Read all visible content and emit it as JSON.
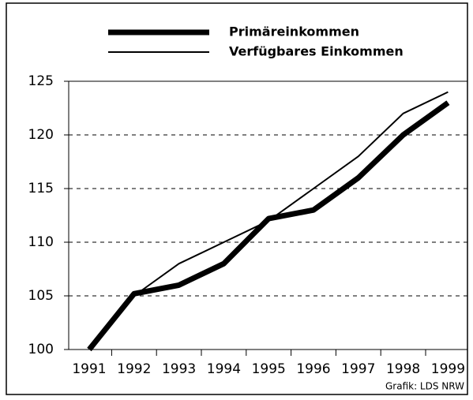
{
  "chart_data": {
    "type": "line",
    "categories": [
      "1991",
      "1992",
      "1993",
      "1994",
      "1995",
      "1996",
      "1997",
      "1998",
      "1999"
    ],
    "series": [
      {
        "name": "Primäreinkommen",
        "color": "#000000",
        "values": [
          100,
          105.2,
          106,
          108,
          112.2,
          113,
          116,
          120,
          123
        ]
      },
      {
        "name": "Verfügbares Einkommen",
        "color": "#000000",
        "values": [
          100,
          105,
          108,
          110,
          112,
          115,
          118,
          122,
          124
        ]
      }
    ],
    "ylim": [
      100,
      125
    ],
    "yticks": [
      100,
      105,
      110,
      115,
      120,
      125
    ],
    "grid": true,
    "annotation": "Grafik: LDS NRW"
  }
}
